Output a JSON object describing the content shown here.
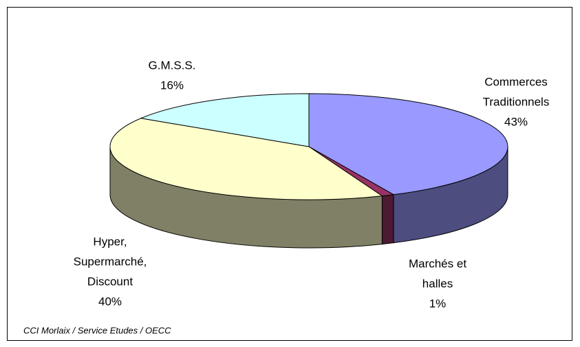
{
  "chart_data": {
    "type": "pie3d",
    "categories": [
      [
        "Commerces",
        "Traditionnels"
      ],
      [
        "Marchés et",
        "halles"
      ],
      [
        "Hyper,",
        "Supermarché,",
        "Discount"
      ],
      [
        "G.M.S.S."
      ]
    ],
    "values": [
      43,
      1,
      40,
      16
    ],
    "value_labels": [
      "43%",
      "1%",
      "40%",
      "16%"
    ],
    "colors": [
      "#9999ff",
      "#993366",
      "#ffffcc",
      "#ccffff"
    ],
    "side_colors": [
      "#4d4d80",
      "#4d1a33",
      "#808066",
      "#668080"
    ],
    "source": "CCI Morlaix / Service Etudes / OECC"
  }
}
